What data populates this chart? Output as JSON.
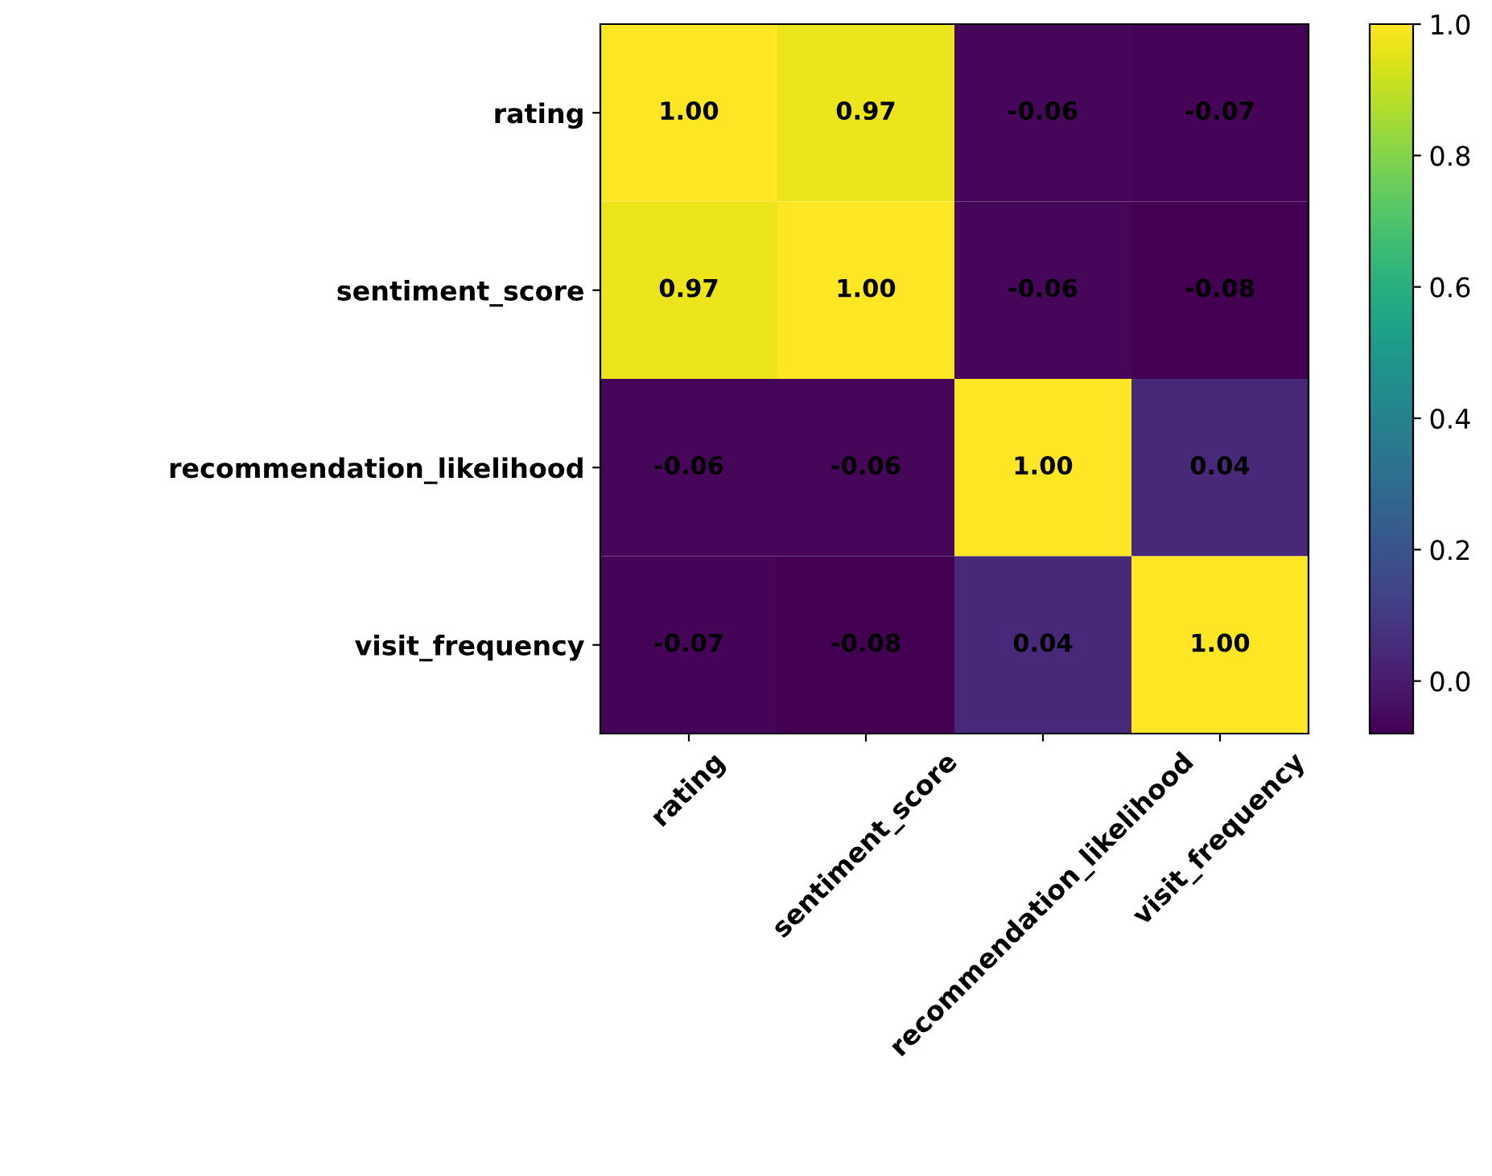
{
  "chart_data": {
    "type": "heatmap",
    "categories": [
      "rating",
      "sentiment_score",
      "recommendation_likelihood",
      "visit_frequency"
    ],
    "y_categories": [
      "rating",
      "sentiment_score",
      "recommendation_likelihood",
      "visit_frequency"
    ],
    "cells": [
      [
        1.0,
        0.97,
        -0.06,
        -0.07
      ],
      [
        0.97,
        1.0,
        -0.06,
        -0.08
      ],
      [
        -0.06,
        -0.06,
        1.0,
        0.04
      ],
      [
        -0.07,
        -0.08,
        0.04,
        1.0
      ]
    ],
    "cell_labels": [
      [
        "1.00",
        "0.97",
        "-0.06",
        "-0.07"
      ],
      [
        "0.97",
        "1.00",
        "-0.06",
        "-0.08"
      ],
      [
        "-0.06",
        "-0.06",
        "1.00",
        "0.04"
      ],
      [
        "-0.07",
        "-0.08",
        "0.04",
        "1.00"
      ]
    ],
    "clim": [
      -0.08,
      1.0
    ],
    "cticks": [
      {
        "value": 0.0,
        "label": "0.0"
      },
      {
        "value": 0.2,
        "label": "0.2"
      },
      {
        "value": 0.4,
        "label": "0.4"
      },
      {
        "value": 0.6,
        "label": "0.6"
      },
      {
        "value": 0.8,
        "label": "0.8"
      },
      {
        "value": 1.0,
        "label": "1.0"
      }
    ]
  }
}
